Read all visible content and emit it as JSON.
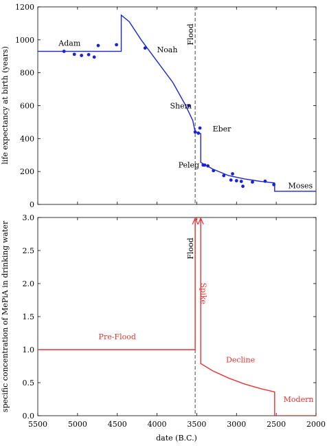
{
  "chart_data": [
    {
      "type": "line",
      "ylabel": "life expectancy at birth (years)",
      "xlim": [
        5500,
        2000
      ],
      "ylim": [
        0,
        1200
      ],
      "y_ticks": [
        0,
        200,
        400,
        600,
        800,
        1000,
        1200
      ],
      "line_color": "#1a23d6",
      "flood_line_x": 3520,
      "flood_label": "Flood",
      "series": [
        {
          "type": "line",
          "points": [
            [
              5500,
              930
            ],
            [
              4450,
              930
            ],
            [
              4450,
              1150
            ],
            [
              4350,
              1110
            ],
            [
              4200,
              1000
            ],
            [
              4000,
              870
            ],
            [
              3800,
              740
            ],
            [
              3650,
              610
            ],
            [
              3550,
              510
            ],
            [
              3520,
              440
            ],
            [
              3450,
              430
            ],
            [
              3450,
              255
            ],
            [
              3300,
              215
            ],
            [
              3100,
              175
            ],
            [
              2900,
              155
            ],
            [
              2700,
              140
            ],
            [
              2520,
              130
            ],
            [
              2520,
              80
            ],
            [
              2000,
              80
            ]
          ]
        },
        {
          "type": "scatter",
          "points": [
            [
              5170,
              930
            ],
            [
              5040,
              912
            ],
            [
              4950,
              905
            ],
            [
              4860,
              910
            ],
            [
              4790,
              895
            ],
            [
              4740,
              965
            ],
            [
              4510,
              970
            ],
            [
              4150,
              950
            ],
            [
              3600,
              600
            ],
            [
              3520,
              440
            ],
            [
              3480,
              433
            ],
            [
              3460,
              464
            ],
            [
              3420,
              239
            ],
            [
              3400,
              239
            ],
            [
              3360,
              234
            ],
            [
              3290,
              205
            ],
            [
              3160,
              175
            ],
            [
              3070,
              148
            ],
            [
              3050,
              186
            ],
            [
              3000,
              144
            ],
            [
              2940,
              140
            ],
            [
              2920,
              110
            ],
            [
              2800,
              136
            ],
            [
              2640,
              141
            ],
            [
              2530,
              120
            ]
          ]
        }
      ],
      "annotations": [
        {
          "text": "Adam",
          "x": 5100,
          "y": 980
        },
        {
          "text": "Noah",
          "x": 4000,
          "y": 940
        },
        {
          "text": "Shem",
          "x": 3700,
          "y": 600
        },
        {
          "text": "Eber",
          "x": 3300,
          "y": 460
        },
        {
          "text": "Peleg",
          "x": 3600,
          "y": 240
        },
        {
          "text": "Moses",
          "x": 2350,
          "y": 115
        }
      ]
    },
    {
      "type": "line",
      "xlabel": "date (B.C.)",
      "ylabel": "specific concentration of MePiA in drinking water",
      "xlim": [
        5500,
        2000
      ],
      "ylim": [
        0,
        3.0
      ],
      "x_ticks": [
        5500,
        5000,
        4500,
        4000,
        3500,
        3000,
        2500,
        2000
      ],
      "y_ticks": [
        0.0,
        0.5,
        1.0,
        1.5,
        2.0,
        2.5,
        3.0
      ],
      "y_tick_labels": [
        "0.0",
        "0.5",
        "1.0",
        "1.5",
        "2.0",
        "2.5",
        "3.0"
      ],
      "line_color": "#e8322f",
      "flood_line_x": 3520,
      "flood_label": "Flood",
      "series": [
        {
          "type": "line",
          "points": [
            [
              5500,
              1.0
            ],
            [
              3520,
              1.0
            ],
            [
              3520,
              3.0
            ],
            [
              3450,
              3.0
            ],
            [
              3450,
              0.79
            ],
            [
              3300,
              0.68
            ],
            [
              3100,
              0.57
            ],
            [
              2900,
              0.48
            ],
            [
              2700,
              0.41
            ],
            [
              2520,
              0.36
            ],
            [
              2520,
              0.0
            ],
            [
              2000,
              0.0
            ]
          ]
        }
      ],
      "annotations": [
        {
          "text": "Pre-Flood",
          "x": 4500,
          "y": 1.2
        },
        {
          "text": "Spike",
          "x": 3480,
          "y": 1.85
        },
        {
          "text": "Decline",
          "x": 2950,
          "y": 0.85
        },
        {
          "text": "Modern",
          "x": 2220,
          "y": 0.25
        }
      ]
    }
  ]
}
